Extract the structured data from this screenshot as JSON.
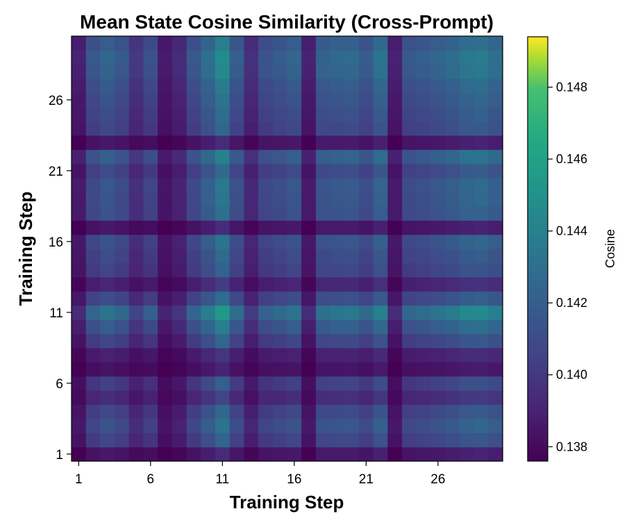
{
  "chart_data": {
    "type": "heatmap",
    "title": "Mean State Cosine Similarity (Cross-Prompt)",
    "xlabel": "Training Step",
    "ylabel": "Training Step",
    "x_ticks": [
      "1",
      "6",
      "11",
      "16",
      "21",
      "26"
    ],
    "y_ticks": [
      "1",
      "6",
      "11",
      "16",
      "21",
      "26"
    ],
    "steps": [
      1,
      2,
      3,
      4,
      5,
      6,
      7,
      8,
      9,
      10,
      11,
      12,
      13,
      14,
      15,
      16,
      17,
      18,
      19,
      20,
      21,
      22,
      23,
      24,
      25,
      26,
      27,
      28,
      29,
      30
    ],
    "step_offsets": [
      0.0,
      0.0028,
      0.0038,
      0.003,
      0.0015,
      0.0022,
      0.0,
      0.0008,
      0.0028,
      0.0048,
      0.0072,
      0.0035,
      0.0008,
      0.003,
      0.0033,
      0.0038,
      0.0,
      0.004,
      0.004,
      0.0042,
      0.0032,
      0.0052,
      0.0,
      0.003,
      0.0035,
      0.0038,
      0.0045,
      0.0052,
      0.0055,
      0.0048
    ],
    "step_weights": [
      0.5,
      0.9,
      1.0,
      0.9,
      0.6,
      0.9,
      0.4,
      0.5,
      0.9,
      1.0,
      1.1,
      0.9,
      0.6,
      0.8,
      0.9,
      1.0,
      0.5,
      0.9,
      1.0,
      1.0,
      0.9,
      1.0,
      0.5,
      0.9,
      0.9,
      1.0,
      1.0,
      1.1,
      1.1,
      1.0
    ],
    "value_base": 0.1376,
    "colorbar": {
      "label": "Cosine",
      "range": [
        0.1376,
        0.1494
      ],
      "ticks": [
        "0.138",
        "0.140",
        "0.142",
        "0.144",
        "0.146",
        "0.148"
      ],
      "tick_values": [
        0.138,
        0.14,
        0.142,
        0.144,
        0.146,
        0.148
      ],
      "colormap": "viridis"
    },
    "grid": false,
    "legend": "none"
  }
}
